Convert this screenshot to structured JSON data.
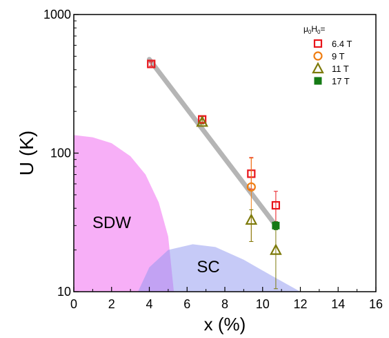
{
  "chart_data": {
    "type": "scatter",
    "xlabel": "x (%)",
    "ylabel": "U (K)",
    "xlim": [
      0,
      16
    ],
    "ylim": [
      10,
      1000
    ],
    "yscale": "log",
    "x_ticks": [
      0,
      2,
      4,
      6,
      8,
      10,
      12,
      14,
      16
    ],
    "y_ticks": [
      10,
      100,
      1000
    ],
    "grid": false,
    "legend": {
      "title_base": "μ",
      "title_sub1": "0",
      "title_mid": "H",
      "title_sub2": "0",
      "title_end": "=",
      "placement": "top-right"
    },
    "series": [
      {
        "name": "6.4 T",
        "marker": "square-open",
        "color": "#e8151b",
        "points": [
          {
            "x": 4.1,
            "y": 440,
            "err": 15
          },
          {
            "x": 6.8,
            "y": 175,
            "err": 8
          },
          {
            "x": 9.4,
            "y": 71,
            "err_low": 16,
            "err_high": 22
          },
          {
            "x": 10.7,
            "y": 42,
            "err_low": 10,
            "err_high": 11
          }
        ]
      },
      {
        "name": "9 T",
        "marker": "circle-open",
        "color": "#ef7d11",
        "points": [
          {
            "x": 9.4,
            "y": 57,
            "err_low": 34,
            "err_high": 35
          }
        ]
      },
      {
        "name": "11 T",
        "marker": "triangle-open",
        "color": "#7d7a0a",
        "points": [
          {
            "x": 6.8,
            "y": 168,
            "err": 6
          },
          {
            "x": 9.4,
            "y": 33,
            "err_low": 10,
            "err_high": 6
          },
          {
            "x": 10.7,
            "y": 20,
            "err_low": 9.5,
            "err_high": 8
          }
        ]
      },
      {
        "name": "17 T",
        "marker": "square-filled",
        "color": "#157a15",
        "points": [
          {
            "x": 10.7,
            "y": 30,
            "err": 2
          }
        ]
      }
    ],
    "trend_line": {
      "x": [
        4.0,
        10.7
      ],
      "y": [
        475,
        30
      ],
      "color": "#b5b5b5"
    },
    "regions": [
      {
        "label": "SDW",
        "color": "#f06ef0",
        "opacity": 0.55,
        "boundary": [
          [
            0,
            135
          ],
          [
            1,
            130
          ],
          [
            2,
            118
          ],
          [
            3,
            95
          ],
          [
            3.8,
            70
          ],
          [
            4.5,
            44
          ],
          [
            5,
            25
          ],
          [
            5.3,
            10
          ]
        ]
      },
      {
        "label": "SC",
        "color": "#8e96f0",
        "opacity": 0.5,
        "boundary": [
          [
            3.4,
            10
          ],
          [
            4,
            15
          ],
          [
            5,
            20
          ],
          [
            6.3,
            22
          ],
          [
            7.5,
            21
          ],
          [
            9,
            17
          ],
          [
            10.5,
            13
          ],
          [
            12,
            10
          ]
        ]
      }
    ]
  }
}
